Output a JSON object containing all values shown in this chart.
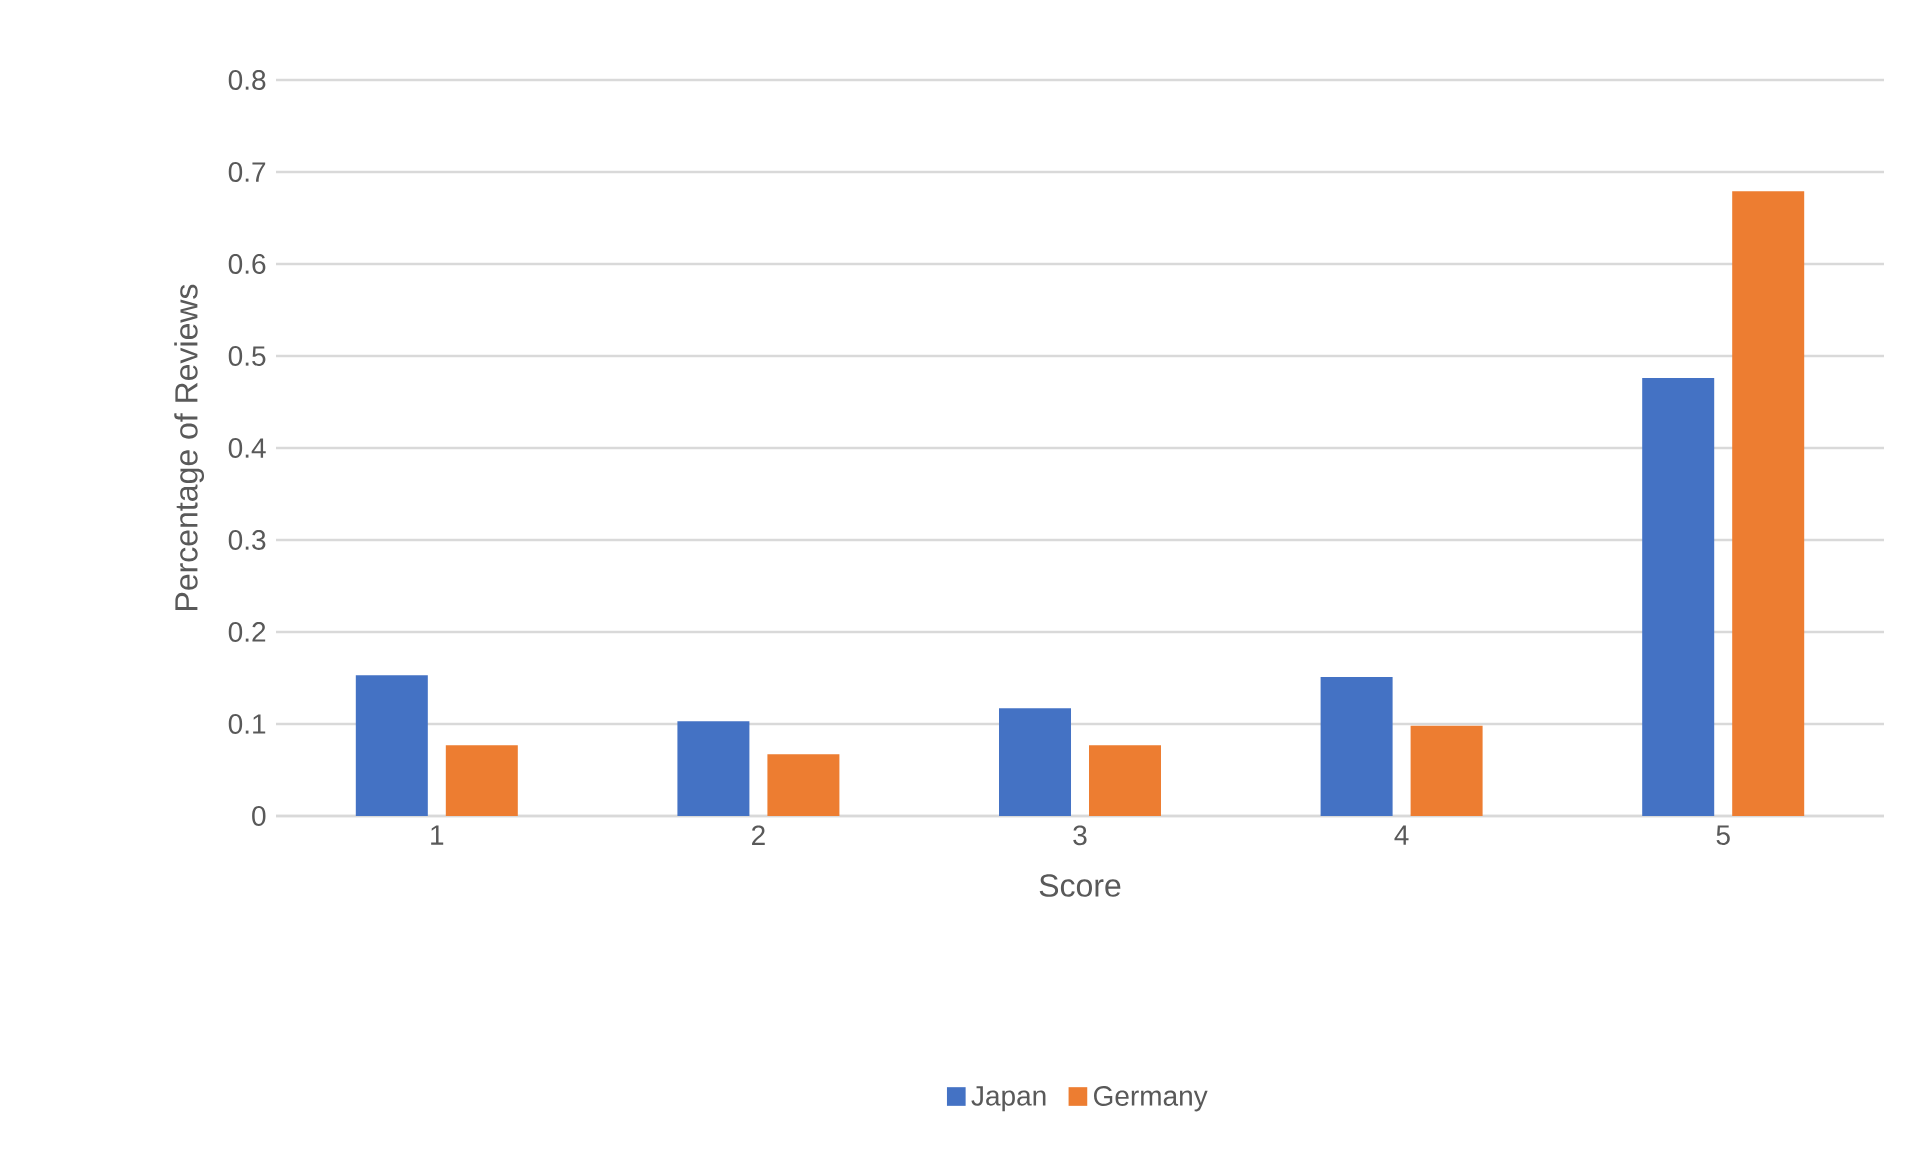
{
  "chart_data": {
    "type": "bar",
    "xlabel": "Score",
    "ylabel": "Percentage of Reviews",
    "categories": [
      "1",
      "2",
      "3",
      "4",
      "5"
    ],
    "series": [
      {
        "name": "Japan",
        "color": "#4472c4",
        "values": [
          0.153,
          0.103,
          0.117,
          0.151,
          0.476
        ]
      },
      {
        "name": "Germany",
        "color": "#ed7d31",
        "values": [
          0.077,
          0.067,
          0.077,
          0.098,
          0.679
        ]
      }
    ],
    "ylim": [
      0,
      0.8
    ],
    "yticks": [
      0,
      0.1,
      0.2,
      0.3,
      0.4,
      0.5,
      0.6,
      0.7,
      0.8
    ],
    "grid": "y",
    "legend": "bottom"
  }
}
